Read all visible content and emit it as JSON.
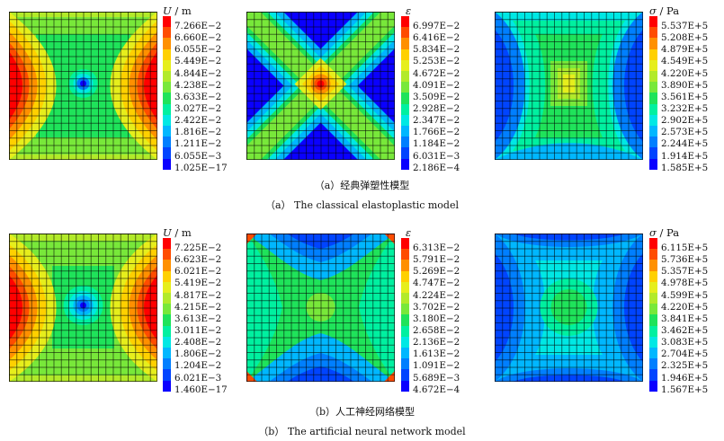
{
  "colors": {
    "scale": [
      "#0a00ff",
      "#0044ff",
      "#007fff",
      "#00b7ff",
      "#00e8e4",
      "#00f0a0",
      "#1fe35a",
      "#78e83a",
      "#b2ea2a",
      "#e6ee1c",
      "#ffd000",
      "#ff9000",
      "#ff4c00",
      "#ff0000"
    ]
  },
  "rows": [
    {
      "caption_cn": "（a）经典弹塑性模型",
      "caption_en": "（a） The classical elastoplastic model",
      "panels": [
        {
          "name": "displacement",
          "title_symbol": "U",
          "title_unit": " / m",
          "ticks": [
            "7.266E−2",
            "6.660E−2",
            "6.055E−2",
            "5.449E−2",
            "4.844E−2",
            "4.238E−2",
            "3.633E−2",
            "3.027E−2",
            "2.422E−2",
            "1.816E−2",
            "1.211E−2",
            "6.055E−3",
            "1.025E−17"
          ]
        },
        {
          "name": "strain",
          "title_symbol": "ε",
          "title_unit": "",
          "ticks": [
            "6.997E−2",
            "6.416E−2",
            "5.834E−2",
            "5.253E−2",
            "4.672E−2",
            "4.091E−2",
            "3.509E−2",
            "2.928E−2",
            "2.347E−2",
            "1.766E−2",
            "1.184E−2",
            "6.031E−3",
            "2.186E−4"
          ]
        },
        {
          "name": "stress",
          "title_symbol": "σ",
          "title_unit": " / Pa",
          "ticks": [
            "5.537E+5",
            "5.208E+5",
            "4.879E+5",
            "4.549E+5",
            "4.220E+5",
            "3.890E+5",
            "3.561E+5",
            "3.232E+5",
            "2.902E+5",
            "2.573E+5",
            "2.244E+5",
            "1.914E+5",
            "1.585E+5"
          ]
        }
      ]
    },
    {
      "caption_cn": "（b）人工神经网络模型",
      "caption_en": "（b） The artificial neural network model",
      "panels": [
        {
          "name": "displacement",
          "title_symbol": "U",
          "title_unit": " / m",
          "ticks": [
            "7.225E−2",
            "6.623E−2",
            "6.021E−2",
            "5.419E−2",
            "4.817E−2",
            "4.215E−2",
            "3.613E−2",
            "3.011E−2",
            "2.408E−2",
            "1.806E−2",
            "1.204E−2",
            "6.021E−3",
            "1.460E−17"
          ]
        },
        {
          "name": "strain",
          "title_symbol": "ε",
          "title_unit": "",
          "ticks": [
            "6.313E−2",
            "5.791E−2",
            "5.269E−2",
            "4.747E−2",
            "4.224E−2",
            "3.702E−2",
            "3.180E−2",
            "2.658E−2",
            "2.136E−2",
            "1.613E−2",
            "1.091E−2",
            "5.689E−3",
            "4.672E−4"
          ]
        },
        {
          "name": "stress",
          "title_symbol": "σ",
          "title_unit": " / Pa",
          "ticks": [
            "6.115E+5",
            "5.736E+5",
            "5.357E+5",
            "4.978E+5",
            "4.599E+5",
            "4.220E+5",
            "3.841E+5",
            "3.462E+5",
            "3.083E+5",
            "2.704E+5",
            "2.325E+5",
            "1.946E+5",
            "1.567E+5"
          ]
        }
      ]
    }
  ]
}
